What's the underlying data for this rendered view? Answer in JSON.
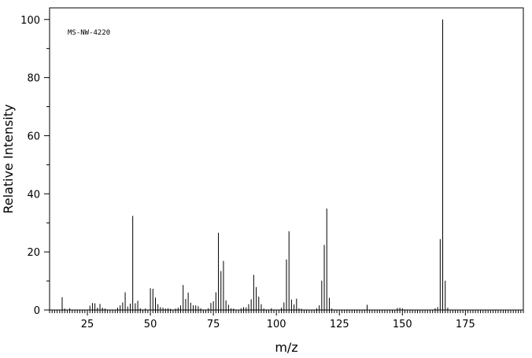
{
  "chart_data": {
    "type": "bar",
    "annotation": "MS-NW-4220",
    "xlabel": "m/z",
    "ylabel": "Relative Intensity",
    "xlim": [
      10,
      198
    ],
    "ylim": [
      0,
      104
    ],
    "x_ticks": [
      25,
      50,
      75,
      100,
      125,
      150,
      175
    ],
    "y_ticks": [
      0,
      20,
      40,
      60,
      80,
      100
    ],
    "grid": false,
    "peaks": [
      [
        15,
        4.4
      ],
      [
        16,
        0.5
      ],
      [
        18,
        0.6
      ],
      [
        26,
        1.5
      ],
      [
        27,
        2.4
      ],
      [
        28,
        2.3
      ],
      [
        29,
        0.8
      ],
      [
        30,
        2.1
      ],
      [
        31,
        0.8
      ],
      [
        32,
        0.5
      ],
      [
        37,
        0.8
      ],
      [
        38,
        1.6
      ],
      [
        39,
        2.6
      ],
      [
        40,
        6.1
      ],
      [
        41,
        1.2
      ],
      [
        42,
        2.2
      ],
      [
        43,
        32.4
      ],
      [
        44,
        2.3
      ],
      [
        45,
        3.2
      ],
      [
        46,
        0.6
      ],
      [
        48,
        0.5
      ],
      [
        50,
        7.5
      ],
      [
        51,
        7.3
      ],
      [
        52,
        4.3
      ],
      [
        53,
        2.0
      ],
      [
        54,
        1.0
      ],
      [
        55,
        0.8
      ],
      [
        56,
        0.5
      ],
      [
        57,
        0.6
      ],
      [
        58,
        0.4
      ],
      [
        60,
        0.5
      ],
      [
        61,
        0.8
      ],
      [
        62,
        1.6
      ],
      [
        63,
        8.6
      ],
      [
        64,
        3.8
      ],
      [
        65,
        6.0
      ],
      [
        66,
        2.5
      ],
      [
        67,
        1.6
      ],
      [
        68,
        1.6
      ],
      [
        69,
        1.3
      ],
      [
        70,
        0.6
      ],
      [
        73,
        0.6
      ],
      [
        74,
        2.4
      ],
      [
        75,
        3.0
      ],
      [
        76,
        6.1
      ],
      [
        77,
        26.6
      ],
      [
        78,
        13.4
      ],
      [
        79,
        16.9
      ],
      [
        80,
        3.3
      ],
      [
        81,
        1.8
      ],
      [
        82,
        0.6
      ],
      [
        83,
        0.5
      ],
      [
        86,
        0.6
      ],
      [
        87,
        1.0
      ],
      [
        88,
        0.9
      ],
      [
        89,
        2.0
      ],
      [
        90,
        3.7
      ],
      [
        91,
        12.1
      ],
      [
        92,
        7.9
      ],
      [
        93,
        4.6
      ],
      [
        94,
        2.0
      ],
      [
        95,
        0.5
      ],
      [
        98,
        0.6
      ],
      [
        102,
        0.8
      ],
      [
        103,
        2.6
      ],
      [
        104,
        17.4
      ],
      [
        105,
        27.1
      ],
      [
        106,
        3.6
      ],
      [
        107,
        1.9
      ],
      [
        108,
        3.9
      ],
      [
        109,
        0.6
      ],
      [
        110,
        0.4
      ],
      [
        116,
        0.6
      ],
      [
        117,
        1.6
      ],
      [
        118,
        10.1
      ],
      [
        119,
        22.4
      ],
      [
        120,
        34.9
      ],
      [
        121,
        4.2
      ],
      [
        122,
        0.5
      ],
      [
        136,
        1.8
      ],
      [
        148,
        0.7
      ],
      [
        149,
        0.8
      ],
      [
        150,
        0.6
      ],
      [
        163,
        0.6
      ],
      [
        164,
        1.0
      ],
      [
        165,
        24.4
      ],
      [
        166,
        100.0
      ],
      [
        167,
        10.1
      ],
      [
        168,
        0.8
      ]
    ]
  }
}
